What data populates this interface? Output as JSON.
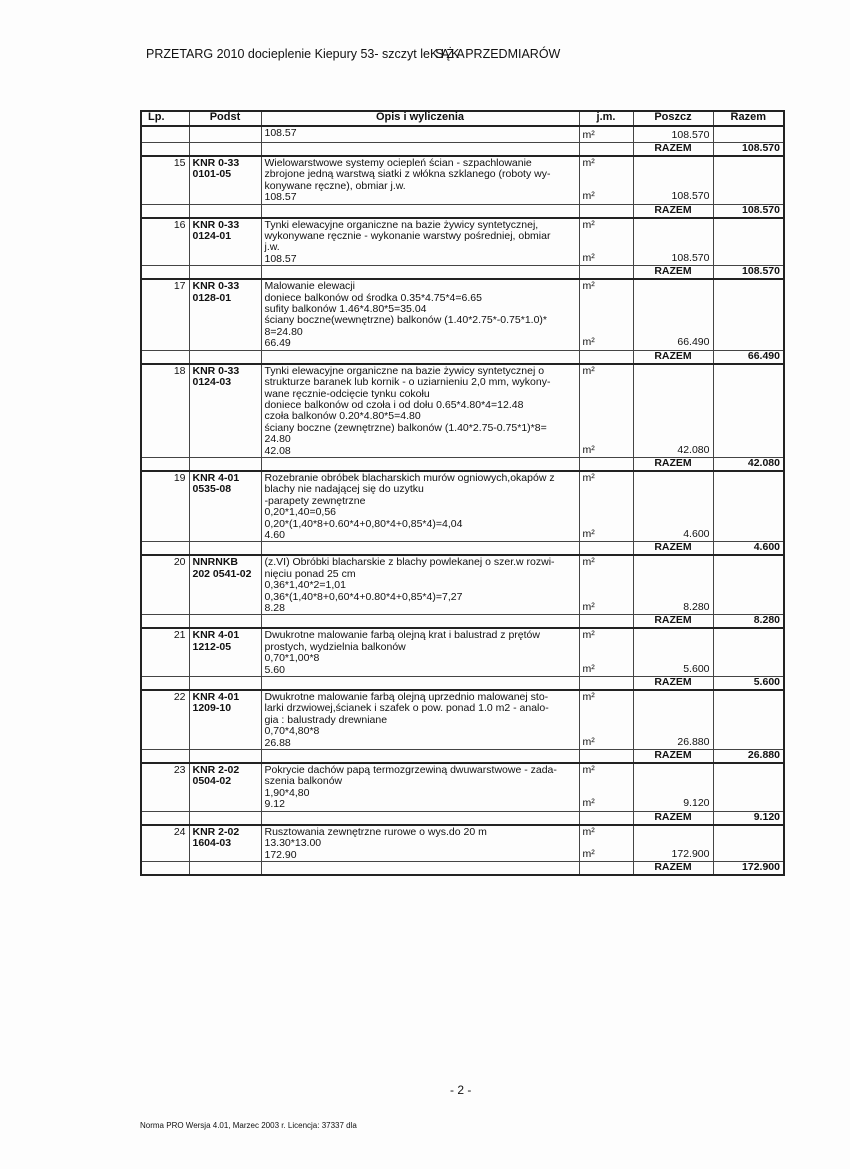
{
  "header": {
    "title": "PRZETARG 2010 docieplenie Kiepury 53- szczyt le",
    "overlay": "KSIĄŻKA",
    "title_end": " PRZEDMIARÓW"
  },
  "columns": [
    "Lp.",
    "Podst",
    "Opis i wyliczenia",
    "j.m.",
    "Poszcz",
    "Razem"
  ],
  "razem_label": "RAZEM",
  "unit": "m²",
  "items": [
    {
      "lp": "",
      "podst": [],
      "lines": [],
      "quantity": "108.57",
      "poszcz": "108.570",
      "razem": "108.570"
    },
    {
      "lp": "15",
      "podst": [
        "KNR 0-33",
        "0101-05"
      ],
      "lines": [
        "Wielowarstwowe systemy ociepleń ścian  - szpachlowanie",
        "zbrojone jedną warstwą siatki z włókna szklanego (roboty wy-",
        "konywane ręczne), obmiar j.w."
      ],
      "quantity": "108.57",
      "poszcz": "108.570",
      "razem": "108.570"
    },
    {
      "lp": "16",
      "podst": [
        "KNR 0-33",
        "0124-01"
      ],
      "lines": [
        "Tynki elewacyjne organiczne na bazie żywicy syntetycznej,",
        "wykonywane ręcznie - wykonanie warstwy pośredniej, obmiar",
        "j.w."
      ],
      "quantity": "108.57",
      "poszcz": "108.570",
      "razem": "108.570"
    },
    {
      "lp": "17",
      "podst": [
        "KNR 0-33",
        "0128-01"
      ],
      "lines": [
        "Malowanie elewacji",
        "doniece balkonów od środka 0.35*4.75*4=6.65",
        "sufity balkonów 1.46*4.80*5=35.04",
        "ściany boczne(wewnętrzne) balkonów (1.40*2.75*-0.75*1.0)*",
        "8=24.80"
      ],
      "quantity": "66.49",
      "poszcz": "66.490",
      "razem": "66.490"
    },
    {
      "lp": "18",
      "podst": [
        "KNR 0-33",
        "0124-03"
      ],
      "lines": [
        "Tynki elewacyjne organiczne na bazie żywicy syntetycznej o",
        "strukturze baranek lub kornik - o uziarnieniu 2,0 mm, wykony-",
        "wane ręcznie-odcięcie tynku cokołu",
        "doniece balkonów od czoła i od dołu 0.65*4.80*4=12.48",
        "czoła balkonów 0.20*4.80*5=4.80",
        "ściany boczne (zewnętrzne) balkonów (1.40*2.75-0.75*1)*8=",
        "24.80"
      ],
      "quantity": "42.08",
      "poszcz": "42.080",
      "razem": "42.080"
    },
    {
      "lp": "19",
      "podst": [
        "KNR 4-01",
        "0535-08"
      ],
      "lines": [
        "Rozebranie obróbek blacharskich murów ogniowych,okapów z",
        "blachy nie nadającej się do uzytku",
        "-parapety zewnętrzne",
        "0,20*1,40=0,56",
        "0,20*(1,40*8+0.60*4+0,80*4+0,85*4)=4,04"
      ],
      "quantity": "4.60",
      "poszcz": "4.600",
      "razem": "4.600"
    },
    {
      "lp": "20",
      "podst": [
        "NNRNKB",
        "202 0541-02"
      ],
      "lines": [
        "(z.VI) Obróbki blacharskie z blachy powlekanej o szer.w rozwi-",
        "nięciu ponad 25 cm",
        "0,36*1,40*2=1,01",
        "0,36*(1,40*8+0,60*4+0.80*4+0,85*4)=7,27"
      ],
      "quantity": "8.28",
      "poszcz": "8.280",
      "razem": "8.280"
    },
    {
      "lp": "21",
      "podst": [
        "KNR 4-01",
        "1212-05"
      ],
      "lines": [
        "Dwukrotne malowanie farbą olejną krat i balustrad z prętów",
        "prostych, wydzielnia balkonów",
        "0,70*1,00*8"
      ],
      "quantity": "5.60",
      "poszcz": "5.600",
      "razem": "5.600"
    },
    {
      "lp": "22",
      "podst": [
        "KNR 4-01",
        "1209-10"
      ],
      "lines": [
        "Dwukrotne malowanie farbą olejną uprzednio malowanej sto-",
        "larki drzwiowej,ścianek i szafek o pow. ponad 1.0 m2 - analo-",
        "gia : balustrady drewniane",
        "0,70*4,80*8"
      ],
      "quantity": "26.88",
      "poszcz": "26.880",
      "razem": "26.880"
    },
    {
      "lp": "23",
      "podst": [
        "KNR 2-02",
        "0504-02"
      ],
      "lines": [
        "Pokrycie dachów papą termozgrzewiną dwuwarstwowe - zada-",
        "szenia balkonów",
        "1,90*4,80"
      ],
      "quantity": "9.12",
      "poszcz": "9.120",
      "razem": "9.120"
    },
    {
      "lp": "24",
      "podst": [
        "KNR 2-02",
        "1604-03"
      ],
      "lines": [
        "Rusztowania zewnętrzne rurowe o wys.do 20 m",
        "13.30*13.00"
      ],
      "quantity": "172.90",
      "poszcz": "172.900",
      "razem": "172.900"
    }
  ],
  "page_number": "- 2 -",
  "footer": "Norma PRO Wersja 4.01, Marzec 2003 r. Licencja: 37337 dla"
}
